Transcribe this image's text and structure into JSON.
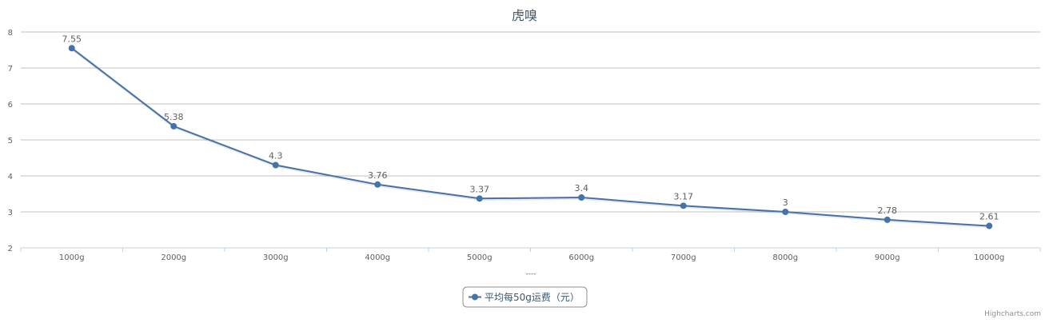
{
  "chart_data": {
    "type": "line",
    "title": "虎嗅",
    "xlabel": "----",
    "ylabel": "",
    "categories": [
      "1000g",
      "2000g",
      "3000g",
      "4000g",
      "5000g",
      "6000g",
      "7000g",
      "8000g",
      "9000g",
      "10000g"
    ],
    "ylim": [
      2,
      8
    ],
    "yticks": [
      2,
      3,
      4,
      5,
      6,
      7,
      8
    ],
    "grid": true,
    "legend_position": "bottom-center",
    "series": [
      {
        "name": "平均每50g运费（元）",
        "values": [
          7.55,
          5.38,
          4.3,
          3.76,
          3.37,
          3.4,
          3.17,
          3,
          2.78,
          2.61
        ],
        "color": "#4572a7"
      }
    ]
  },
  "credits": "Highcharts.com",
  "colors": {
    "grid": "#c0c0c0",
    "axis": "#c0d0e0",
    "text": "#606060",
    "title": "#3e576f"
  }
}
